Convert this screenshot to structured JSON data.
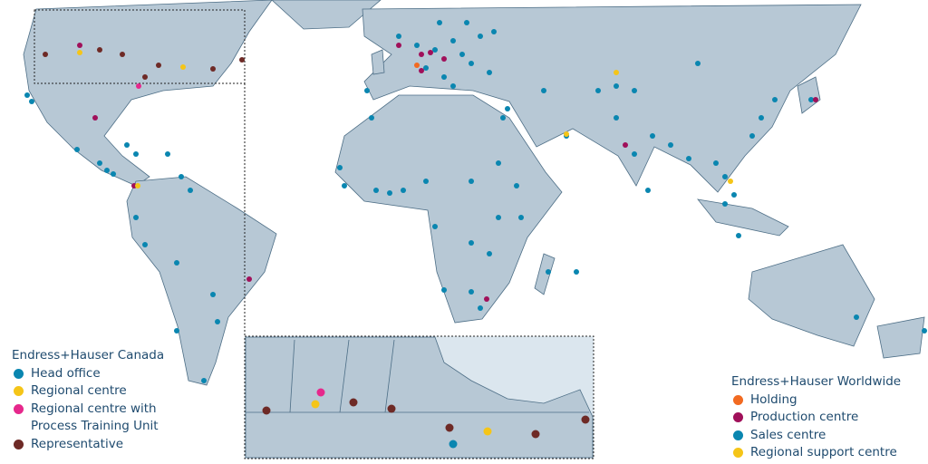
{
  "legend_canada": {
    "title": "Endress+Hauser Canada",
    "items": [
      {
        "label": "Head office",
        "color": "#0a86b0"
      },
      {
        "label": "Regional centre",
        "color": "#f5c518"
      },
      {
        "label": "Regional centre with Process Training Unit",
        "color": "#e6288c"
      },
      {
        "label": "Representative",
        "color": "#6e2a26"
      }
    ]
  },
  "legend_worldwide": {
    "title": "Endress+Hauser Worldwide",
    "items": [
      {
        "label": "Holding",
        "color": "#f26a21"
      },
      {
        "label": "Production centre",
        "color": "#a0105a"
      },
      {
        "label": "Sales centre",
        "color": "#0a86b0"
      },
      {
        "label": "Regional support centre",
        "color": "#f5c518"
      }
    ]
  }
}
